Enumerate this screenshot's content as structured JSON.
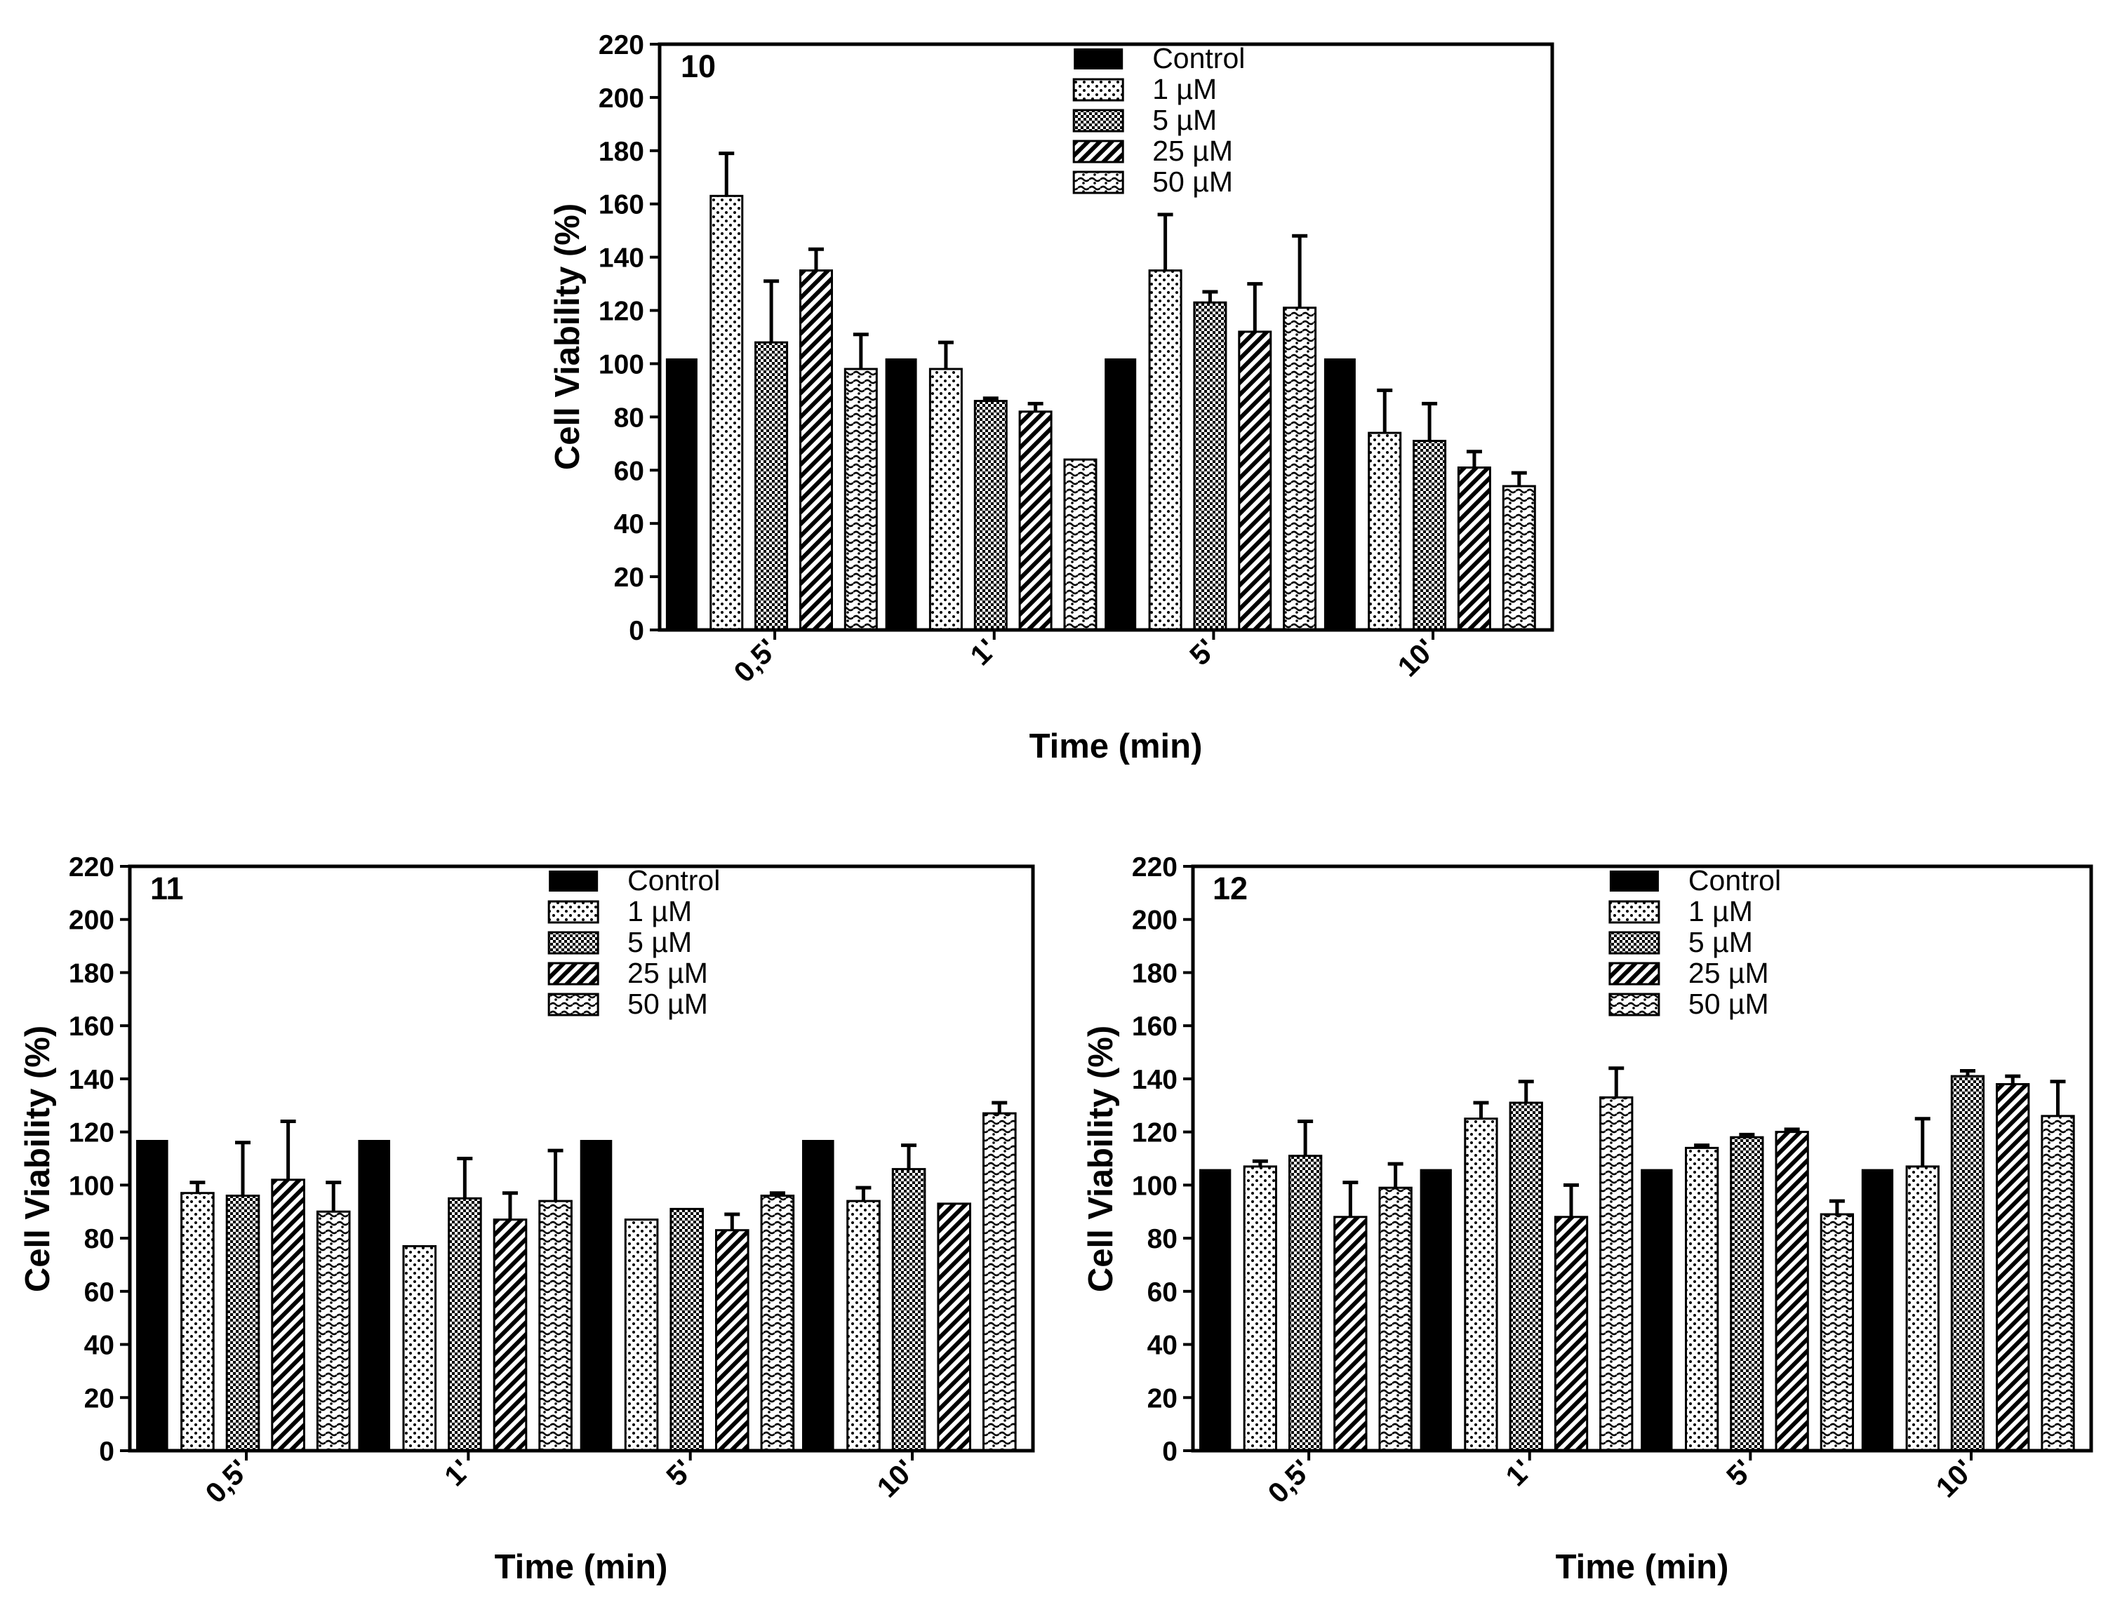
{
  "chart_data": [
    {
      "type": "bar",
      "panel_label": "10",
      "categories": [
        "0,5'",
        "1'",
        "5'",
        "10'"
      ],
      "xlabel": "Time (min)",
      "ylabel": "Cell Viability (%)",
      "ylim": [
        0,
        220
      ],
      "yticks": [
        "0",
        "20",
        "40",
        "60",
        "80",
        "100",
        "120",
        "140",
        "160",
        "180",
        "200",
        "220"
      ],
      "legend_position": "top-right",
      "series": [
        {
          "name": "Control",
          "values": [
            102,
            102,
            102,
            102
          ],
          "errors": [
            0,
            0,
            0,
            0
          ]
        },
        {
          "name": "1 µM",
          "values": [
            163,
            98,
            135,
            74
          ],
          "errors": [
            16,
            10,
            21,
            16
          ]
        },
        {
          "name": "5 µM",
          "values": [
            108,
            86,
            123,
            71
          ],
          "errors": [
            23,
            1,
            4,
            14
          ]
        },
        {
          "name": "25 µM",
          "values": [
            135,
            82,
            112,
            61
          ],
          "errors": [
            8,
            3,
            18,
            6
          ]
        },
        {
          "name": "50 µM",
          "values": [
            98,
            64,
            121,
            54
          ],
          "errors": [
            13,
            0,
            27,
            5
          ]
        }
      ]
    },
    {
      "type": "bar",
      "panel_label": "11",
      "categories": [
        "0,5'",
        "1'",
        "5'",
        "10'"
      ],
      "xlabel": "Time (min)",
      "ylabel": "Cell Viability (%)",
      "ylim": [
        0,
        220
      ],
      "yticks": [
        "0",
        "20",
        "40",
        "60",
        "80",
        "100",
        "120",
        "140",
        "160",
        "180",
        "200",
        "220"
      ],
      "legend_position": "top-right",
      "series": [
        {
          "name": "Control",
          "values": [
            117,
            117,
            117,
            117
          ],
          "errors": [
            0,
            0,
            0,
            0
          ]
        },
        {
          "name": "1 µM",
          "values": [
            97,
            77,
            87,
            94
          ],
          "errors": [
            4,
            0,
            0,
            5
          ]
        },
        {
          "name": "5 µM",
          "values": [
            96,
            95,
            91,
            106
          ],
          "errors": [
            20,
            15,
            0,
            9
          ]
        },
        {
          "name": "25 µM",
          "values": [
            102,
            87,
            83,
            93
          ],
          "errors": [
            22,
            10,
            6,
            0
          ]
        },
        {
          "name": "50 µM",
          "values": [
            90,
            94,
            96,
            127
          ],
          "errors": [
            11,
            19,
            1,
            4
          ]
        }
      ]
    },
    {
      "type": "bar",
      "panel_label": "12",
      "categories": [
        "0,5'",
        "1'",
        "5'",
        "10'"
      ],
      "xlabel": "Time (min)",
      "ylabel": "Cell Viability (%)",
      "ylim": [
        0,
        220
      ],
      "yticks": [
        "0",
        "20",
        "40",
        "60",
        "80",
        "100",
        "120",
        "140",
        "160",
        "180",
        "200",
        "220"
      ],
      "legend_position": "top-right",
      "series": [
        {
          "name": "Control",
          "values": [
            106,
            106,
            106,
            106
          ],
          "errors": [
            0,
            0,
            0,
            0
          ]
        },
        {
          "name": "1 µM",
          "values": [
            107,
            125,
            114,
            107
          ],
          "errors": [
            2,
            6,
            1,
            18
          ]
        },
        {
          "name": "5 µM",
          "values": [
            111,
            131,
            118,
            141
          ],
          "errors": [
            13,
            8,
            1,
            2
          ]
        },
        {
          "name": "25 µM",
          "values": [
            88,
            88,
            120,
            138
          ],
          "errors": [
            13,
            12,
            1,
            3
          ]
        },
        {
          "name": "50 µM",
          "values": [
            99,
            133,
            89,
            126
          ],
          "errors": [
            9,
            11,
            5,
            13
          ]
        }
      ]
    }
  ],
  "colors": {
    "bar_stroke": "#000000",
    "control_fill": "#000000",
    "background": "#ffffff"
  }
}
